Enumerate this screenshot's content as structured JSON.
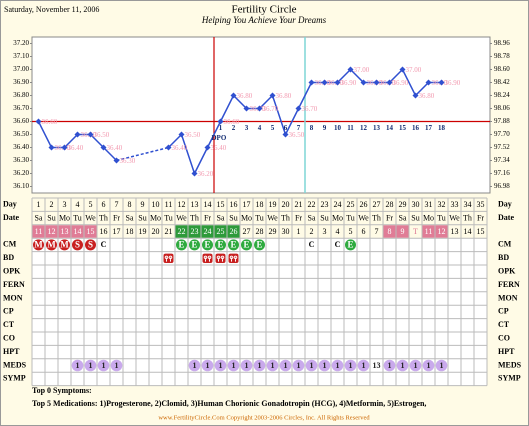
{
  "header": {
    "date": "Saturday, November 11, 2006",
    "title": "Fertility Circle",
    "subtitle": "Helping You Achieve Your Dreams"
  },
  "chart_data": {
    "type": "line",
    "x": [
      1,
      2,
      3,
      4,
      5,
      6,
      7,
      8,
      9,
      10,
      11,
      12,
      13,
      14,
      15,
      16,
      17,
      18,
      19,
      20,
      21,
      22,
      23,
      24,
      25,
      26,
      27,
      28,
      29,
      30,
      31,
      32
    ],
    "values": [
      36.6,
      36.4,
      36.4,
      36.5,
      36.5,
      36.4,
      36.3,
      null,
      null,
      null,
      36.4,
      36.5,
      36.2,
      36.4,
      36.6,
      36.8,
      36.7,
      36.7,
      36.8,
      36.5,
      36.7,
      36.9,
      36.9,
      36.9,
      37.0,
      36.9,
      36.9,
      36.9,
      37.0,
      36.8,
      36.9,
      36.9
    ],
    "value_labels": [
      "36.60",
      "36.40",
      "36.40",
      "36.50",
      "36.50",
      "36.40",
      "36.30",
      null,
      null,
      null,
      "36.40",
      "36.50",
      "36.20",
      "36.40",
      "36.60",
      "36.80",
      "36.70",
      "36.70",
      "36.80",
      "36.50",
      "36.70",
      "36.90",
      "36.90",
      "36.90",
      "37.00",
      "36.90",
      "36.90",
      "36.90",
      "37.00",
      "36.80",
      "36.90",
      "36.90"
    ],
    "color": "#3050d0",
    "label_color": "#f29ab0",
    "ylim": [
      36.05,
      37.25
    ],
    "yticks": [
      {
        "value": 37.2,
        "label": "37.20"
      },
      {
        "value": 37.1,
        "label": "37.10"
      },
      {
        "value": 37.0,
        "label": "37.00"
      },
      {
        "value": 36.9,
        "label": "36.90"
      },
      {
        "value": 36.8,
        "label": "36.80"
      },
      {
        "value": 36.7,
        "label": "36.70"
      },
      {
        "value": 36.6,
        "label": "36.60"
      },
      {
        "value": 36.5,
        "label": "36.50"
      },
      {
        "value": 36.4,
        "label": "36.40"
      },
      {
        "value": 36.3,
        "label": "36.30"
      },
      {
        "value": 36.2,
        "label": "36.20"
      },
      {
        "value": 36.1,
        "label": "36.10"
      }
    ],
    "y2lim": [
      96.89,
      99.05
    ],
    "y2ticks": [
      98.96,
      98.78,
      {
        "value": 98.6,
        "label": "98.60"
      },
      98.42,
      98.24,
      98.06,
      97.88,
      {
        "value": 97.7,
        "label": "97.70"
      },
      97.52,
      97.34,
      97.16,
      96.98
    ],
    "coverline": 36.6,
    "coverline_color": "#cc0000",
    "ovulation_day": 14,
    "ovulation_color": "#cc0000",
    "marker_day": 21,
    "marker_color": "#7fd6d6",
    "dpo_label": "DPO",
    "dpo_start": 15,
    "dpo": [
      1,
      2,
      3,
      4,
      5,
      6,
      7,
      8,
      9,
      10,
      11,
      12,
      13,
      14,
      15,
      16,
      17,
      18
    ]
  },
  "table": {
    "row_labels": [
      "Day",
      "Date",
      "CM",
      "BD",
      "OPK",
      "FERN",
      "MON",
      "CP",
      "CT",
      "CO",
      "HPT",
      "MEDS",
      "SYMP"
    ],
    "days": [
      1,
      2,
      3,
      4,
      5,
      6,
      7,
      8,
      9,
      10,
      11,
      12,
      13,
      14,
      15,
      16,
      17,
      18,
      19,
      20,
      21,
      22,
      23,
      24,
      25,
      26,
      27,
      28,
      29,
      30,
      31,
      32,
      33,
      34,
      35
    ],
    "weekdays": [
      "Sa",
      "Su",
      "Mo",
      "Tu",
      "We",
      "Th",
      "Fr",
      "Sa",
      "Su",
      "Mo",
      "Tu",
      "We",
      "Th",
      "Fr",
      "Sa",
      "Su",
      "Mo",
      "Tu",
      "We",
      "Th",
      "Fr",
      "Sa",
      "Su",
      "Mo",
      "Tu",
      "We",
      "Th",
      "Fr",
      "Sa",
      "Su",
      "Mo",
      "Tu",
      "We",
      "Th",
      "Fr"
    ],
    "dates": [
      11,
      12,
      13,
      14,
      15,
      16,
      17,
      18,
      19,
      20,
      21,
      22,
      23,
      24,
      25,
      26,
      27,
      28,
      29,
      30,
      1,
      2,
      3,
      4,
      5,
      6,
      7,
      8,
      9,
      "T",
      11,
      12,
      13,
      14,
      15
    ],
    "date_colors": [
      "#e07c96",
      "#e07c96",
      "#e07c96",
      "#e07c96",
      "#e07c96",
      null,
      null,
      null,
      null,
      null,
      null,
      "#2e9a3a",
      "#2e9a3a",
      "#2e9a3a",
      "#2e9a3a",
      "#2e9a3a",
      null,
      null,
      null,
      null,
      null,
      null,
      null,
      null,
      null,
      null,
      null,
      "#e07c96",
      "#e07c96",
      null,
      "#e07c96",
      "#e07c96",
      null,
      null,
      null
    ],
    "cm": [
      "M",
      "M",
      "M",
      "S",
      "S",
      "C",
      null,
      null,
      null,
      null,
      null,
      "E",
      "E",
      "E",
      "E",
      "E",
      "E",
      "E",
      null,
      null,
      null,
      "C",
      null,
      "C",
      "E",
      null,
      null,
      null,
      null,
      null,
      null,
      null,
      null,
      null,
      null
    ],
    "cm_colors": {
      "M": "#c82020",
      "S": "#c82020",
      "E": "#2faa3f"
    },
    "bd_days": [
      11,
      14,
      15,
      16
    ],
    "bd_color": "#c82020",
    "meds": [
      null,
      null,
      null,
      "1",
      "1",
      "1",
      "1",
      null,
      null,
      null,
      null,
      null,
      "1",
      "1",
      "1",
      "1",
      "1",
      "1",
      "1",
      "1",
      "1",
      "1",
      "1",
      "1",
      "1",
      "1",
      "13",
      "1",
      "1",
      "1",
      "1",
      "1",
      null,
      null,
      null
    ],
    "meds_color": "#c9a9ec"
  },
  "footer": {
    "symptoms": "Top 0 Symptoms:",
    "medications": "Top 5 Medications: 1)Progesterone, 2)Clomid, 3)Human Chorionic Gonadotropin (HCG), 4)Metformin, 5)Estrogen,",
    "copyright": "www.FertilityCircle.Com Copyright 2003-2006 Circles, Inc. All Rights Reserved"
  }
}
